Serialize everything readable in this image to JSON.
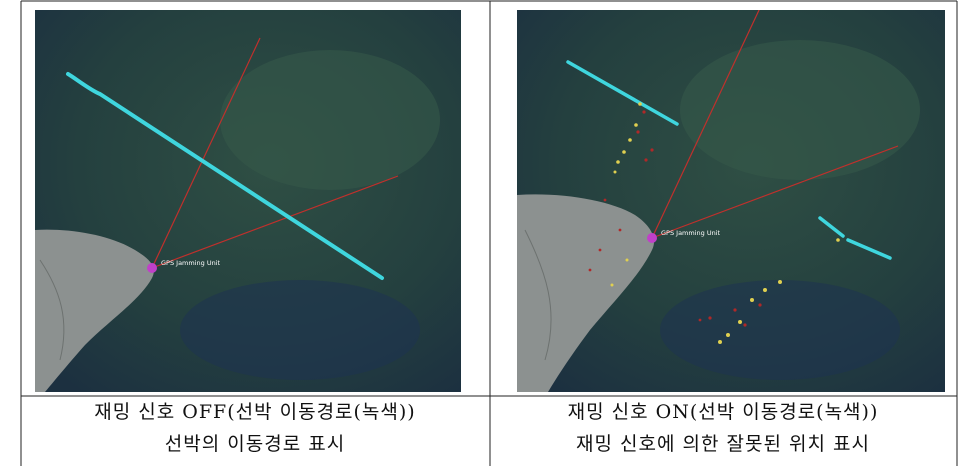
{
  "panels": [
    {
      "map_label": "GPS Jamming Unit",
      "caption": [
        "재밍 신호 OFF(선박 이동경로(녹색))",
        "선박의 이동경로 표시"
      ]
    },
    {
      "map_label": "GPS Jamming Unit",
      "caption": [
        "재밍 신호 ON(선박 이동경로(녹색))",
        "재밍 신호에 의한 잘못된 위치 표시"
      ]
    }
  ]
}
